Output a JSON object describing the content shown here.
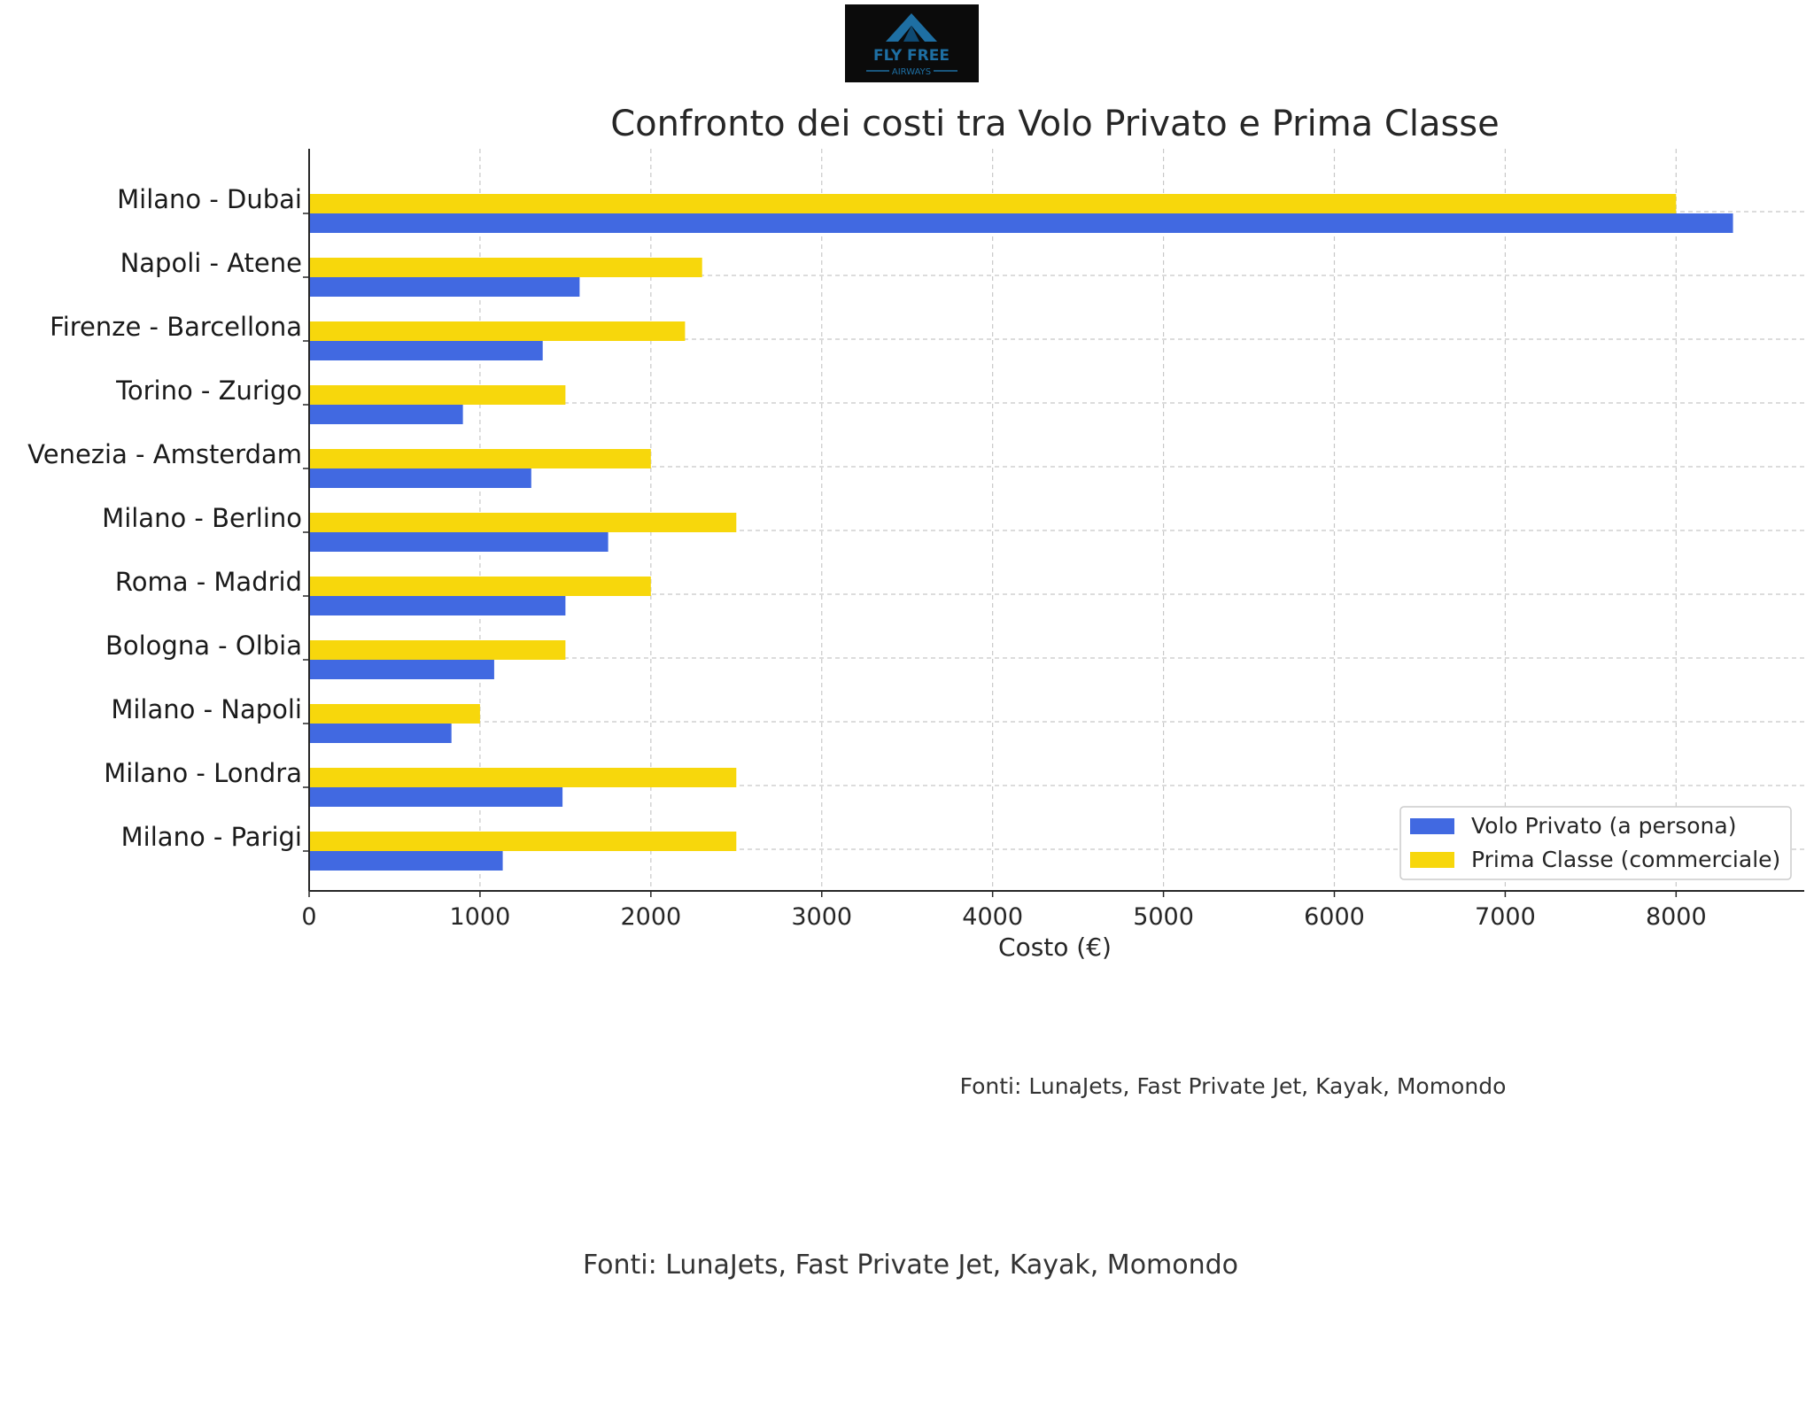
{
  "logo": {
    "line1": "FLY FREE",
    "line2": "AIRWAYS",
    "background": "#0b0b0b",
    "accent": "#1e6fa3"
  },
  "chart_data": {
    "type": "bar",
    "orientation": "horizontal",
    "title": "Confronto dei costi tra Volo Privato e Prima Classe",
    "xlabel": "Costo (€)",
    "ylabel": "",
    "xlim": [
      0,
      8750
    ],
    "xticks": [
      0,
      1000,
      2000,
      3000,
      4000,
      5000,
      6000,
      7000,
      8000
    ],
    "grid": true,
    "legend_position": "bottom-right",
    "categories": [
      "Milano - Dubai",
      "Napoli - Atene",
      "Firenze - Barcellona",
      "Torino - Zurigo",
      "Venezia - Amsterdam",
      "Milano - Berlino",
      "Roma - Madrid",
      "Bologna - Olbia",
      "Milano - Napoli",
      "Milano - Londra",
      "Milano - Parigi"
    ],
    "series": [
      {
        "name": "Volo Privato (a persona)",
        "color": "#4169e1",
        "values": [
          8333,
          1583,
          1367,
          900,
          1300,
          1750,
          1500,
          1083,
          833,
          1483,
          1133
        ]
      },
      {
        "name": "Prima Classe (commerciale)",
        "color": "#f7d70c",
        "values": [
          8000,
          2300,
          2200,
          1500,
          2000,
          2500,
          2000,
          1500,
          1000,
          2500,
          2500
        ]
      }
    ]
  },
  "footer": {
    "source_small": "Fonti: LunaJets, Fast Private Jet, Kayak, Momondo",
    "source_large": "Fonti: LunaJets, Fast Private Jet, Kayak, Momondo"
  }
}
